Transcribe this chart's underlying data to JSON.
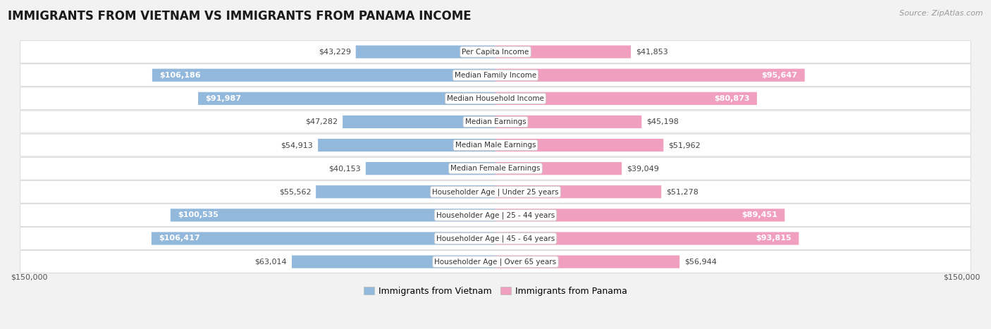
{
  "title": "IMMIGRANTS FROM VIETNAM VS IMMIGRANTS FROM PANAMA INCOME",
  "source": "Source: ZipAtlas.com",
  "categories": [
    "Per Capita Income",
    "Median Family Income",
    "Median Household Income",
    "Median Earnings",
    "Median Male Earnings",
    "Median Female Earnings",
    "Householder Age | Under 25 years",
    "Householder Age | 25 - 44 years",
    "Householder Age | 45 - 64 years",
    "Householder Age | Over 65 years"
  ],
  "vietnam_values": [
    43229,
    106186,
    91987,
    47282,
    54913,
    40153,
    55562,
    100535,
    106417,
    63014
  ],
  "panama_values": [
    41853,
    95647,
    80873,
    45198,
    51962,
    39049,
    51278,
    89451,
    93815,
    56944
  ],
  "vietnam_color": "#92b8dc",
  "panama_color": "#f0a0be",
  "vietnam_label": "Immigrants from Vietnam",
  "panama_label": "Immigrants from Panama",
  "max_value": 150000,
  "background_color": "#f2f2f2",
  "row_bg_light": "#f9f9f9",
  "row_bg_dark": "#ececec",
  "axis_label": "$150,000",
  "vietnam_text_threshold": 75000,
  "panama_text_threshold": 75000,
  "title_fontsize": 12,
  "source_fontsize": 8,
  "bar_label_fontsize": 8,
  "cat_label_fontsize": 7.5,
  "legend_fontsize": 9,
  "axis_tick_fontsize": 8
}
